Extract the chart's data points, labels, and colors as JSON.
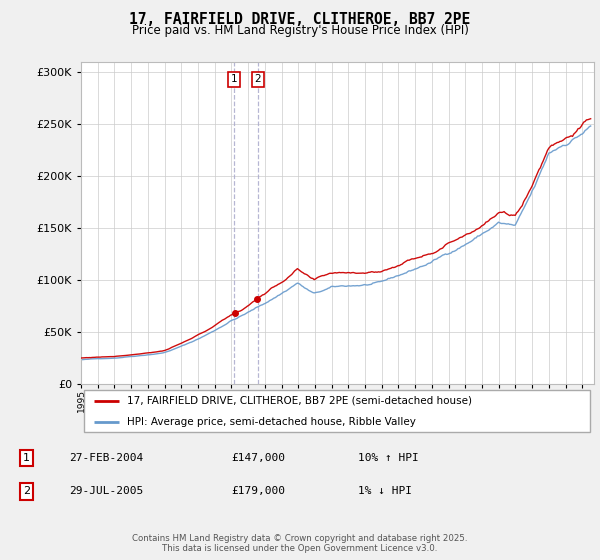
{
  "title": "17, FAIRFIELD DRIVE, CLITHEROE, BB7 2PE",
  "subtitle": "Price paid vs. HM Land Registry's House Price Index (HPI)",
  "legend_line1": "17, FAIRFIELD DRIVE, CLITHEROE, BB7 2PE (semi-detached house)",
  "legend_line2": "HPI: Average price, semi-detached house, Ribble Valley",
  "transaction1_date": "27-FEB-2004",
  "transaction1_price": "£147,000",
  "transaction1_hpi": "10% ↑ HPI",
  "transaction2_date": "29-JUL-2005",
  "transaction2_price": "£179,000",
  "transaction2_hpi": "1% ↓ HPI",
  "footer": "Contains HM Land Registry data © Crown copyright and database right 2025.\nThis data is licensed under the Open Government Licence v3.0.",
  "price_line_color": "#cc0000",
  "hpi_line_color": "#6699cc",
  "transaction1_x": 2004.15,
  "transaction2_x": 2005.57,
  "ylim_min": 0,
  "ylim_max": 310000,
  "background_color": "#f0f0f0",
  "plot_bg_color": "#ffffff"
}
